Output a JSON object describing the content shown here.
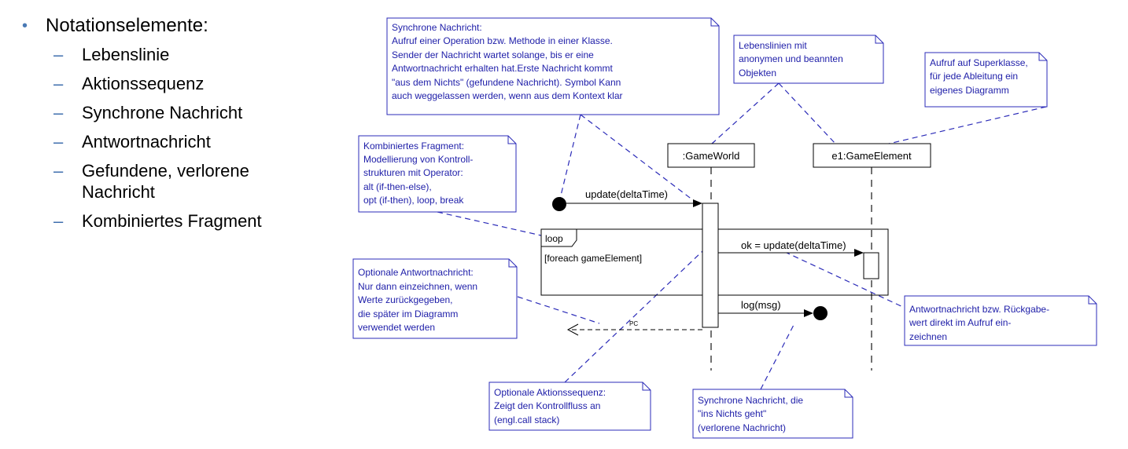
{
  "bullets": {
    "main": "Notationselemente:",
    "items": [
      "Lebenslinie",
      "Aktionssequenz",
      "Synchrone Nachricht",
      "Antwortnachricht",
      "Gefundene, verlorene",
      "Nachricht",
      "Kombiniertes Fragment"
    ]
  },
  "diagram": {
    "lifelines": {
      "gameworld": ":GameWorld",
      "gameelement": "e1:GameElement"
    },
    "messages": {
      "update": "update(deltaTime)",
      "ok_update": "ok = update(deltaTime)",
      "log": "log(msg)",
      "return_label": "PC"
    },
    "fragment": {
      "operator": "loop",
      "guard": "[foreach gameElement]"
    },
    "notes": {
      "sync_message": [
        "Synchrone Nachricht:",
        "Aufruf einer Operation bzw. Methode in einer Klasse.",
        "Sender der Nachricht wartet solange, bis er eine",
        "Antwortnachricht erhalten hat.Erste Nachricht kommt",
        "\"aus dem Nichts\" (gefundene Nachricht). Symbol Kann",
        "auch weggelassen werden, wenn aus dem Kontext klar"
      ],
      "lifelines": [
        "Lebenslinien mit",
        "anonymen und beannten",
        "Objekten"
      ],
      "superclass": [
        "Aufruf auf Superklasse,",
        "für jede Ableitung ein",
        "eigenes Diagramm"
      ],
      "combined_fragment": [
        "Kombiniertes Fragment:",
        "Modellierung von Kontroll-",
        "strukturen mit Operator:",
        "alt (if-then-else),",
        "opt (if-then), loop, break"
      ],
      "optional_answer": [
        "Optionale Antwortnachricht:",
        "Nur dann einzeichnen, wenn",
        "Werte zurückgegeben,",
        "die später im Diagramm",
        "verwendet werden"
      ],
      "answer_message": [
        "Antwortnachricht bzw. Rückgabe-",
        "wert direkt im Aufruf ein-",
        "zeichnen"
      ],
      "action_sequence": [
        "Optionale Aktionssequenz:",
        "Zeigt den Kontrollfluss an",
        "(engl.call stack)"
      ],
      "lost_message": [
        "Synchrone Nachricht, die",
        "\"ins Nichts geht\"",
        "(verlorene Nachricht)"
      ]
    }
  },
  "colors": {
    "note": "#2b2bb8",
    "note_text": "#1d1da8",
    "bullet": "#4a7ab5",
    "uml": "#000000"
  }
}
